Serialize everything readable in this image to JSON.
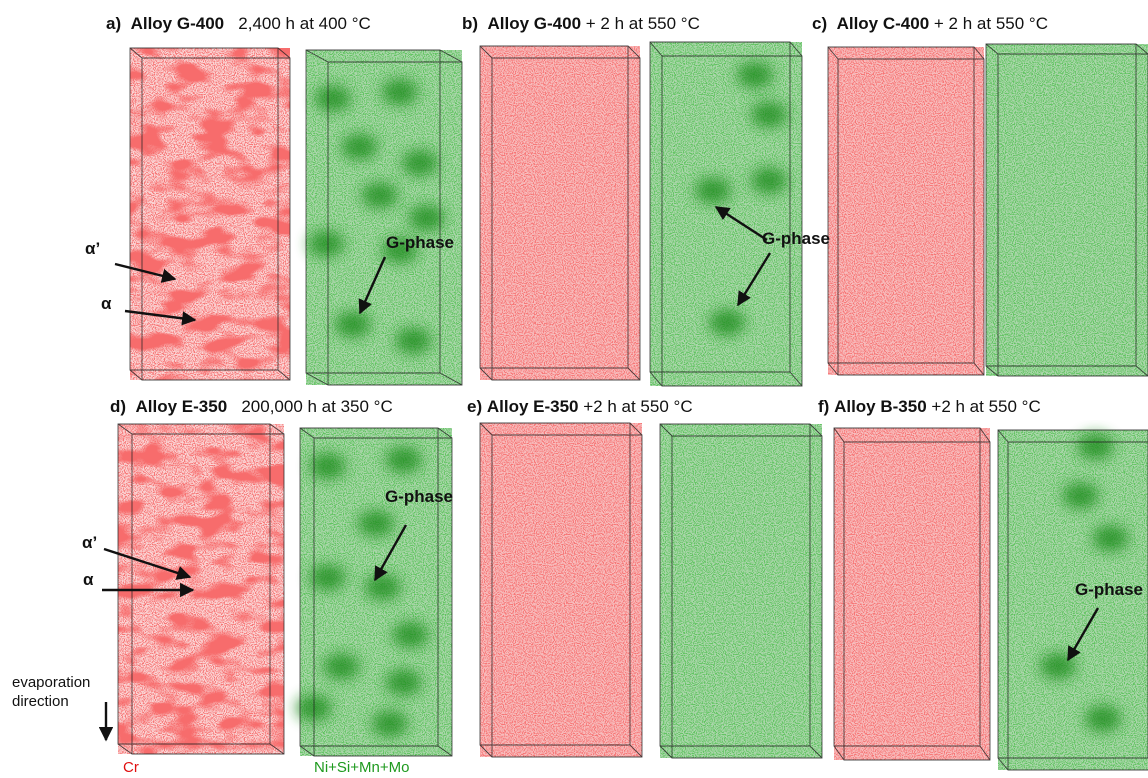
{
  "panels": [
    {
      "label": "a)",
      "alloy": "Alloy G-400",
      "condition": "2,400 h at 400 °C"
    },
    {
      "label": "b)",
      "alloy": "Alloy G-400",
      "condition": "+ 2 h at 550 °C"
    },
    {
      "label": "c)",
      "alloy": "Alloy C-400",
      "condition": "+ 2 h at 550 °C"
    },
    {
      "label": "d)",
      "alloy": "Alloy E-350",
      "condition": "200,000 h at 350 °C"
    },
    {
      "label": "e)",
      "alloy": "Alloy E-350",
      "condition": "+2 h at 550 °C"
    },
    {
      "label": "f)",
      "alloy": "Alloy B-350",
      "condition": "+2 h at 550 °C"
    }
  ],
  "annotations": {
    "alpha_prime": "α’",
    "alpha": "α",
    "g_phase": "G-phase",
    "evaporation_line1": "evaporation",
    "evaporation_line2": "direction",
    "cr_legend": "Cr",
    "green_legend": "Ni+Si+Mn+Mo"
  },
  "colors": {
    "cr": "#e8262a",
    "ni_si_mn_mo": "#1f8c1f"
  }
}
